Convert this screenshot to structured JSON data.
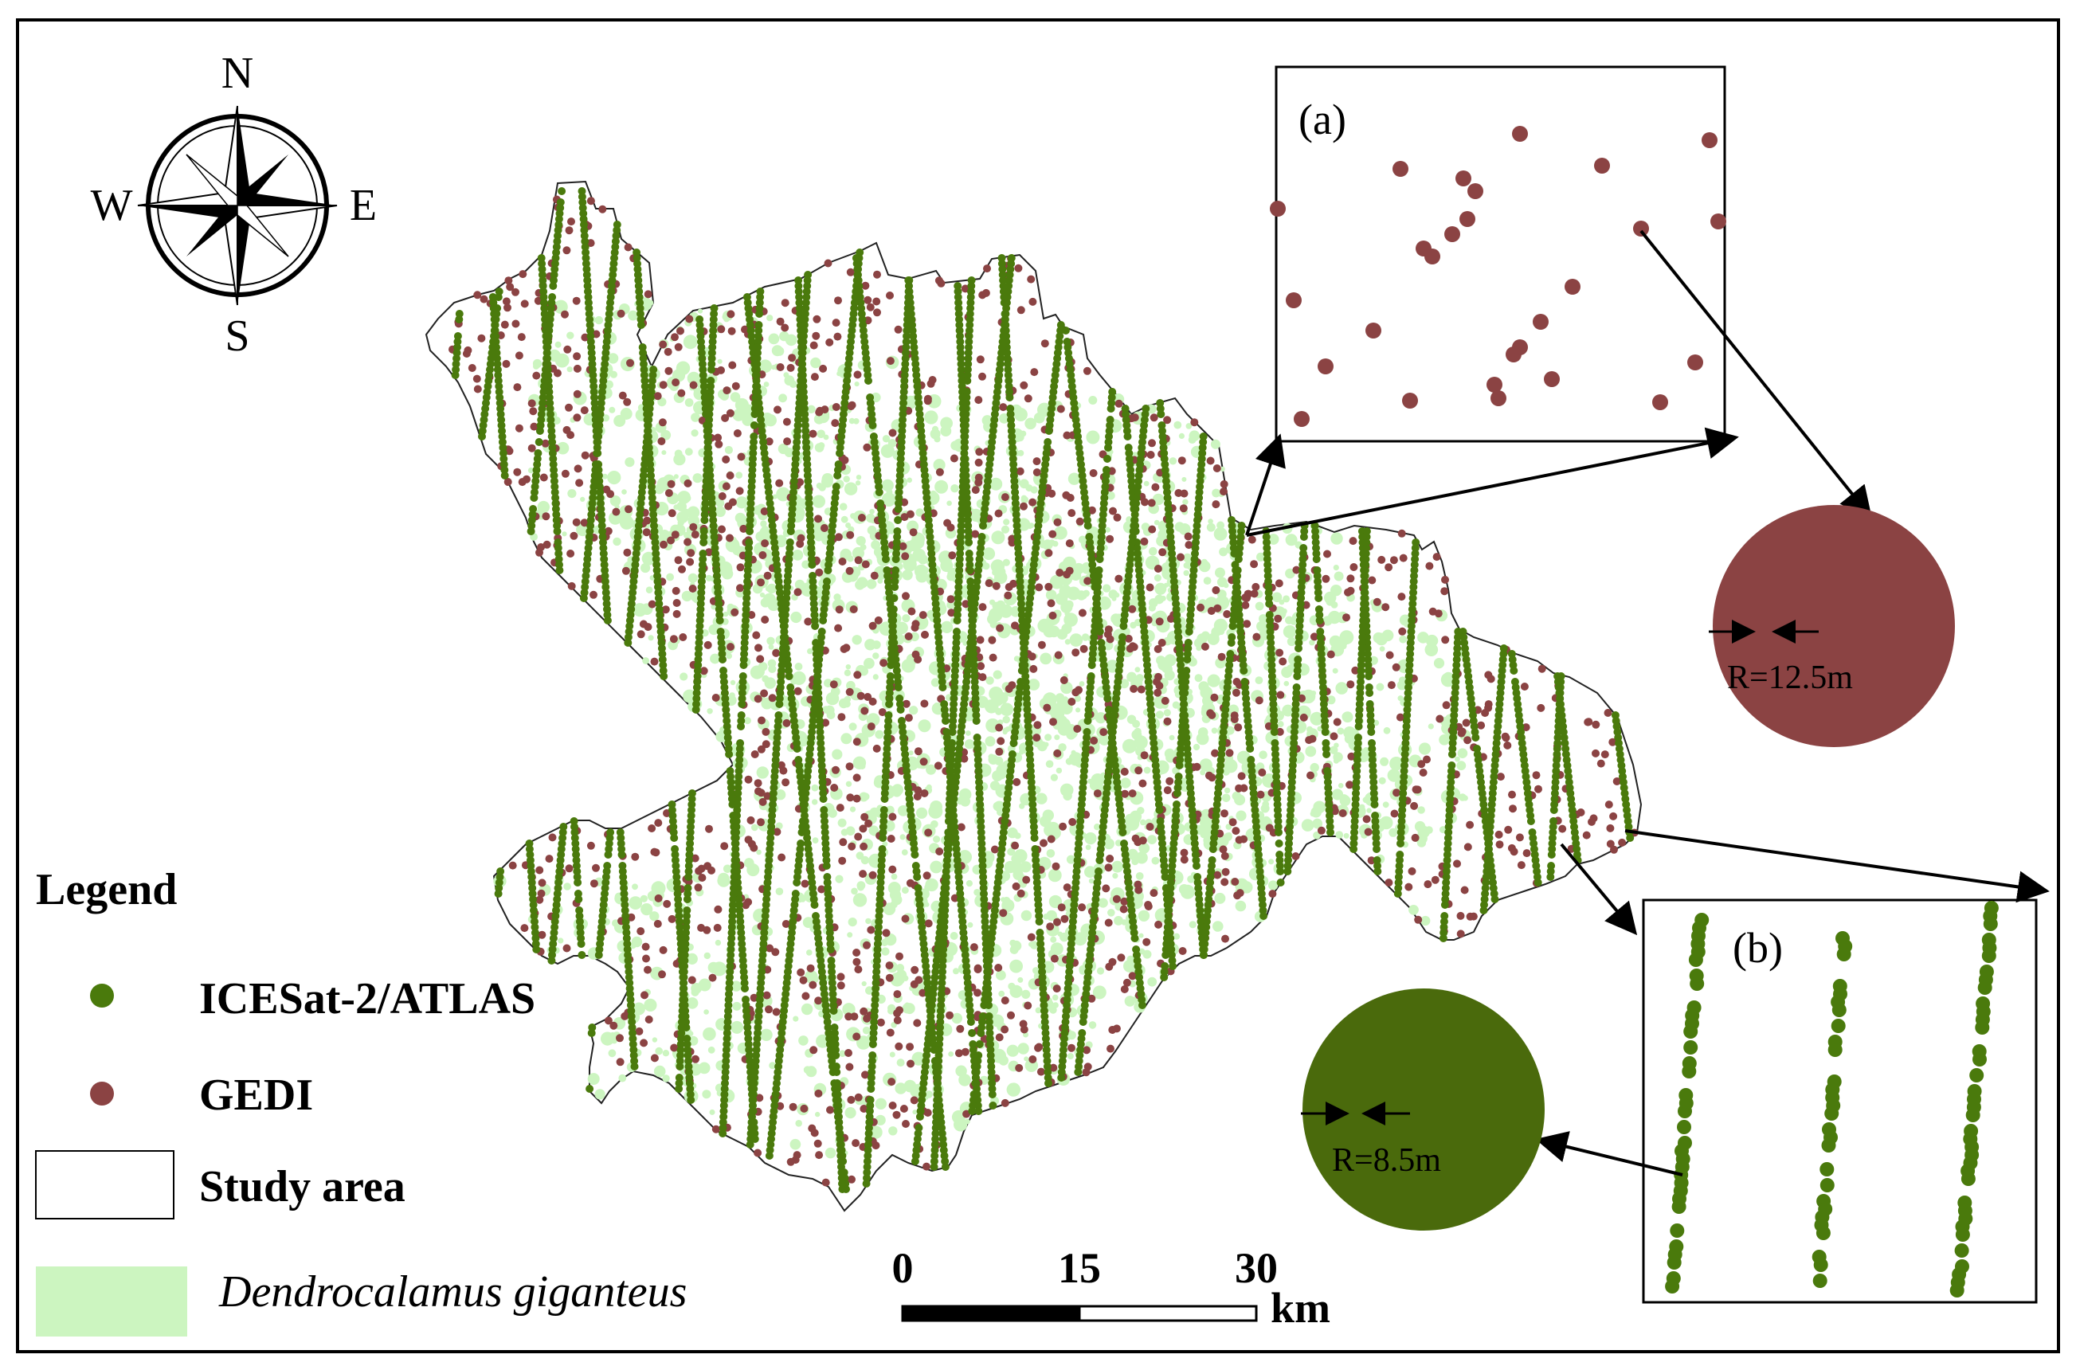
{
  "compass": {
    "north": "N",
    "south": "S",
    "east": "E",
    "west": "W"
  },
  "inset_a": {
    "label": "(a)",
    "radius_label": "R=12.5m"
  },
  "inset_b": {
    "label": "(b)",
    "radius_label": "R=8.5m"
  },
  "legend": {
    "title": "Legend",
    "items": [
      {
        "label": "ICESat-2/ATLAS",
        "symbol": "dot",
        "color": "#4a7a0c"
      },
      {
        "label": "GEDI",
        "symbol": "dot",
        "color": "#8b4343"
      },
      {
        "label": "Study area",
        "symbol": "box",
        "color": "#ffffff"
      },
      {
        "label": "Dendrocalamus giganteus",
        "symbol": "fill",
        "color": "#ccf5c0"
      }
    ]
  },
  "scale_bar": {
    "ticks": [
      "0",
      "15",
      "30"
    ],
    "unit": "km"
  },
  "colors": {
    "atlas": "#4a7a0c",
    "gedi": "#8b4343",
    "bamboo": "#ccf5c0",
    "frame": "#000000"
  }
}
